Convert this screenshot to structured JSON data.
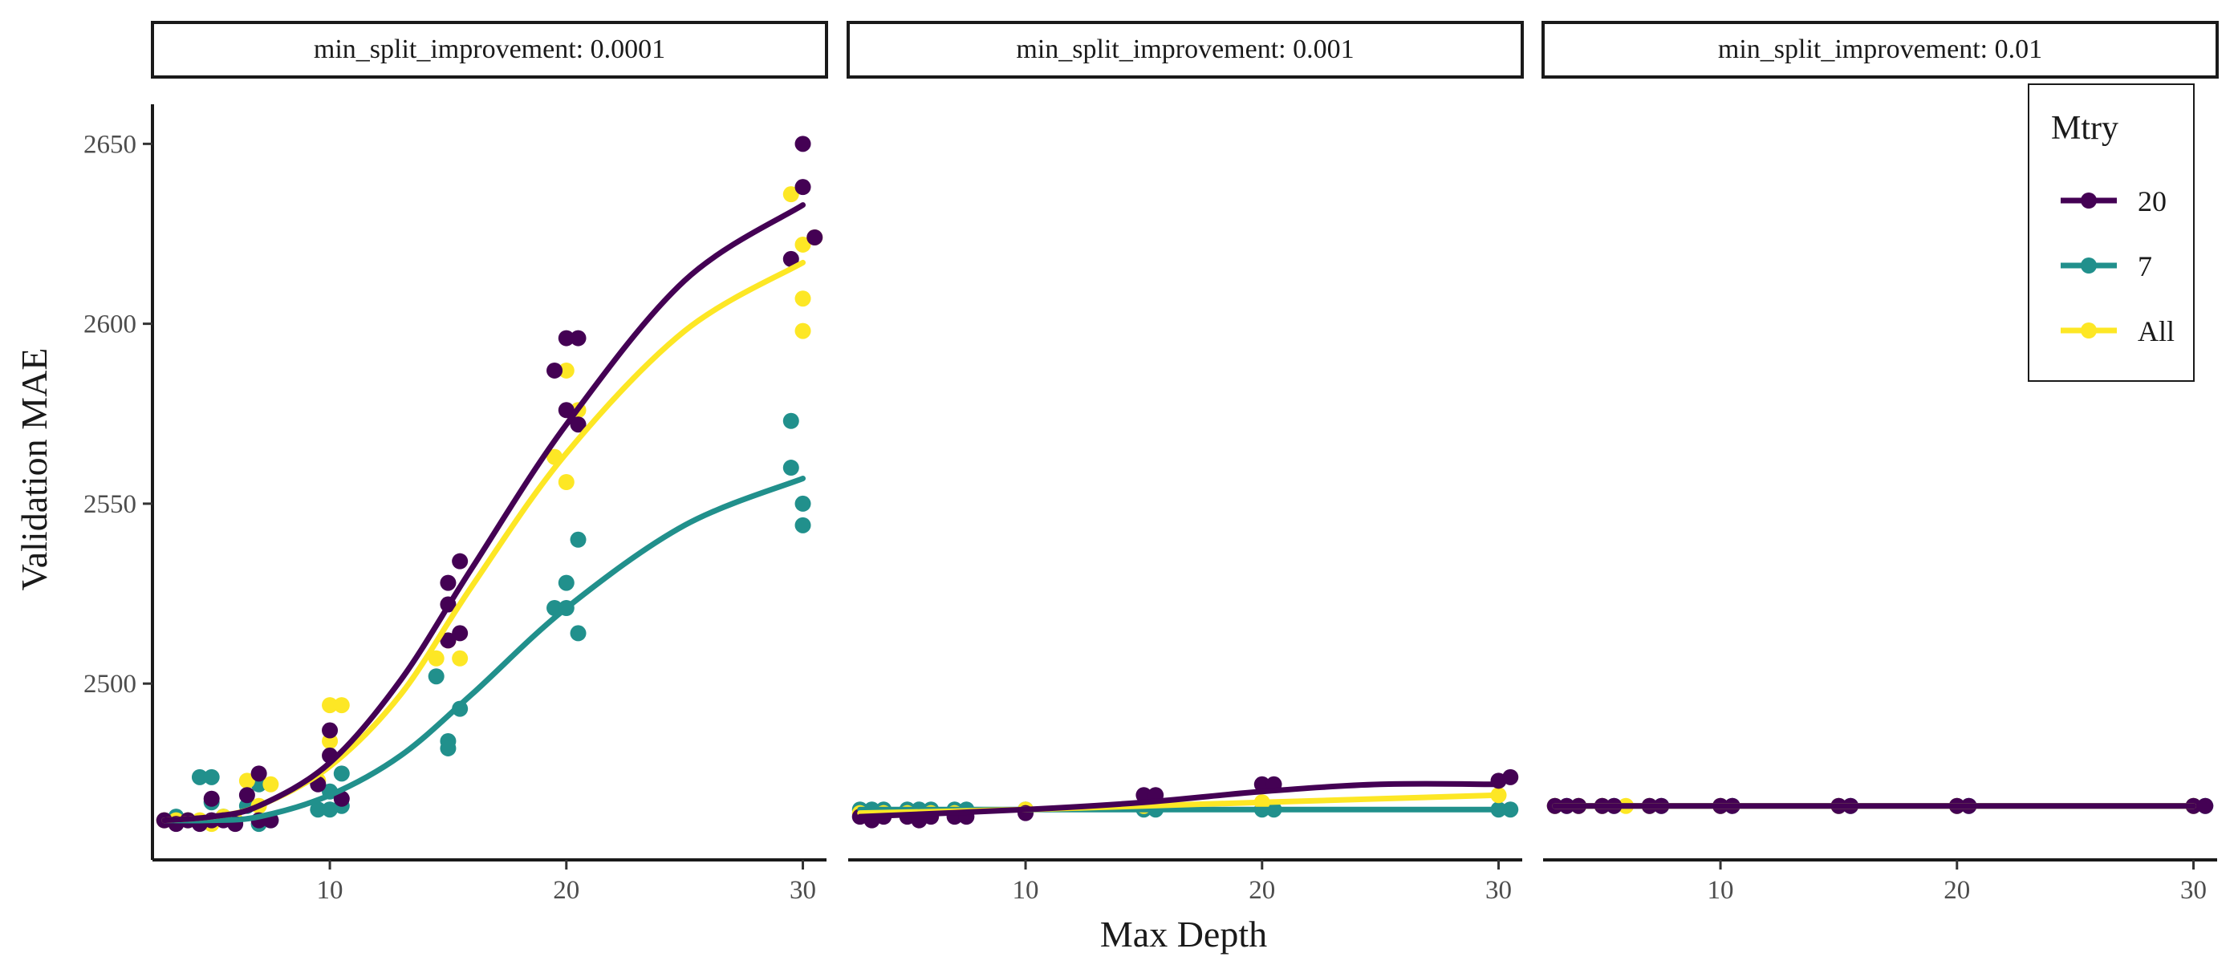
{
  "colors": {
    "20": "#440154",
    "7": "#21908C",
    "All": "#FDE725"
  },
  "chart_data": {
    "type": "scatter",
    "title": "",
    "xlabel": "Max Depth",
    "ylabel": "Validation MAE",
    "xlim": [
      2.5,
      31.0
    ],
    "ylim": [
      2451,
      2661
    ],
    "x_ticks": [
      10,
      20,
      30
    ],
    "x_tick_labels": [
      "10",
      "20",
      "30"
    ],
    "y_ticks": [
      2500,
      2550,
      2600,
      2650
    ],
    "y_tick_labels": [
      "2500",
      "2550",
      "2600",
      "2650"
    ],
    "legend": {
      "title": "Mtry",
      "entries": [
        "20",
        "7",
        "All"
      ],
      "position": "top-right"
    },
    "panels": [
      {
        "label": "min_split_improvement: 0.0001",
        "series": [
          {
            "name": "20",
            "points": [
              [
                3,
                2462
              ],
              [
                3.5,
                2461
              ],
              [
                4,
                2462
              ],
              [
                4.5,
                2461
              ],
              [
                5,
                2468
              ],
              [
                5,
                2462
              ],
              [
                5.5,
                2462
              ],
              [
                6,
                2461
              ],
              [
                6.5,
                2469
              ],
              [
                7,
                2462
              ],
              [
                7,
                2475
              ],
              [
                7.5,
                2462
              ],
              [
                9.5,
                2472
              ],
              [
                10,
                2480
              ],
              [
                10,
                2487
              ],
              [
                10.5,
                2468
              ],
              [
                15,
                2512
              ],
              [
                15,
                2522
              ],
              [
                15,
                2528
              ],
              [
                15.5,
                2534
              ],
              [
                15.5,
                2514
              ],
              [
                19.5,
                2587
              ],
              [
                20,
                2576
              ],
              [
                20,
                2596
              ],
              [
                20.5,
                2572
              ],
              [
                20.5,
                2596
              ],
              [
                29.5,
                2618
              ],
              [
                30,
                2638
              ],
              [
                30,
                2650
              ],
              [
                30.5,
                2624
              ]
            ],
            "curve": [
              [
                3,
                2462
              ],
              [
                5,
                2463
              ],
              [
                7,
                2466
              ],
              [
                10,
                2478
              ],
              [
                13,
                2501
              ],
              [
                16,
                2532
              ],
              [
                20,
                2572
              ],
              [
                25,
                2612
              ],
              [
                30,
                2633
              ]
            ]
          },
          {
            "name": "7",
            "points": [
              [
                3,
                2462
              ],
              [
                3.5,
                2463
              ],
              [
                4,
                2462
              ],
              [
                4.5,
                2474
              ],
              [
                5,
                2474
              ],
              [
                5,
                2467
              ],
              [
                5.5,
                2463
              ],
              [
                6,
                2462
              ],
              [
                6.5,
                2466
              ],
              [
                7,
                2472
              ],
              [
                7,
                2461
              ],
              [
                7.5,
                2462
              ],
              [
                9.5,
                2465
              ],
              [
                10,
                2465
              ],
              [
                10,
                2470
              ],
              [
                10.5,
                2466
              ],
              [
                10.5,
                2475
              ],
              [
                14.5,
                2502
              ],
              [
                15,
                2484
              ],
              [
                15,
                2482
              ],
              [
                15.5,
                2493
              ],
              [
                19.5,
                2521
              ],
              [
                20,
                2521
              ],
              [
                20,
                2528
              ],
              [
                20.5,
                2540
              ],
              [
                20.5,
                2514
              ],
              [
                29.5,
                2573
              ],
              [
                29.5,
                2560
              ],
              [
                30,
                2550
              ],
              [
                30,
                2544
              ]
            ],
            "curve": [
              [
                3,
                2462
              ],
              [
                5,
                2462
              ],
              [
                7,
                2463
              ],
              [
                10,
                2469
              ],
              [
                13,
                2480
              ],
              [
                16,
                2497
              ],
              [
                20,
                2521
              ],
              [
                25,
                2544
              ],
              [
                30,
                2557
              ]
            ]
          },
          {
            "name": "All",
            "points": [
              [
                3,
                2462
              ],
              [
                3.5,
                2462
              ],
              [
                4,
                2462
              ],
              [
                4.5,
                2462
              ],
              [
                5,
                2461
              ],
              [
                5.5,
                2463
              ],
              [
                6,
                2462
              ],
              [
                6.5,
                2473
              ],
              [
                7,
                2466
              ],
              [
                7.5,
                2472
              ],
              [
                9.5,
                2473
              ],
              [
                10,
                2494
              ],
              [
                10.5,
                2494
              ],
              [
                10,
                2484
              ],
              [
                14.5,
                2507
              ],
              [
                15,
                2512
              ],
              [
                15.5,
                2507
              ],
              [
                19.5,
                2563
              ],
              [
                20,
                2556
              ],
              [
                20,
                2587
              ],
              [
                20.5,
                2576
              ],
              [
                29.5,
                2636
              ],
              [
                30,
                2622
              ],
              [
                30,
                2607
              ],
              [
                30,
                2598
              ],
              [
                30.5,
                2624
              ]
            ],
            "curve": [
              [
                3,
                2462
              ],
              [
                5,
                2463
              ],
              [
                7,
                2466
              ],
              [
                10,
                2477
              ],
              [
                13,
                2497
              ],
              [
                16,
                2527
              ],
              [
                20,
                2564
              ],
              [
                25,
                2598
              ],
              [
                30,
                2617
              ]
            ]
          }
        ]
      },
      {
        "label": "min_split_improvement: 0.001",
        "series": [
          {
            "name": "20",
            "points": [
              [
                3,
                2463
              ],
              [
                3.5,
                2462
              ],
              [
                4,
                2463
              ],
              [
                5,
                2463
              ],
              [
                5.5,
                2462
              ],
              [
                6,
                2463
              ],
              [
                7,
                2463
              ],
              [
                7.5,
                2463
              ],
              [
                10,
                2464
              ],
              [
                15,
                2469
              ],
              [
                15.5,
                2469
              ],
              [
                20,
                2472
              ],
              [
                20.5,
                2472
              ],
              [
                30,
                2473
              ],
              [
                30.5,
                2474
              ]
            ],
            "curve": [
              [
                3,
                2463
              ],
              [
                10,
                2465
              ],
              [
                15,
                2467
              ],
              [
                20,
                2470
              ],
              [
                25,
                2472
              ],
              [
                30,
                2472
              ]
            ]
          },
          {
            "name": "7",
            "points": [
              [
                3,
                2465
              ],
              [
                3.5,
                2465
              ],
              [
                4,
                2465
              ],
              [
                5,
                2465
              ],
              [
                5.5,
                2465
              ],
              [
                6,
                2465
              ],
              [
                7,
                2465
              ],
              [
                7.5,
                2465
              ],
              [
                10,
                2465
              ],
              [
                15,
                2465
              ],
              [
                15.5,
                2465
              ],
              [
                20,
                2465
              ],
              [
                20.5,
                2465
              ],
              [
                30,
                2465
              ],
              [
                30.5,
                2465
              ]
            ],
            "curve": [
              [
                3,
                2465
              ],
              [
                10,
                2465
              ],
              [
                20,
                2465
              ],
              [
                30,
                2465
              ]
            ]
          },
          {
            "name": "All",
            "points": [
              [
                3,
                2464
              ],
              [
                4,
                2464
              ],
              [
                5,
                2464
              ],
              [
                6,
                2464
              ],
              [
                7,
                2464
              ],
              [
                10,
                2465
              ],
              [
                15,
                2466
              ],
              [
                20,
                2467
              ],
              [
                30,
                2469
              ]
            ],
            "curve": [
              [
                3,
                2464
              ],
              [
                10,
                2465
              ],
              [
                15,
                2466
              ],
              [
                20,
                2467
              ],
              [
                25,
                2468
              ],
              [
                30,
                2469
              ]
            ]
          }
        ]
      },
      {
        "label": "min_split_improvement: 0.01",
        "series": [
          {
            "name": "20",
            "points": [
              [
                3,
                2466
              ],
              [
                3.5,
                2466
              ],
              [
                4,
                2466
              ],
              [
                5,
                2466
              ],
              [
                5.5,
                2466
              ],
              [
                7,
                2466
              ],
              [
                7.5,
                2466
              ],
              [
                10,
                2466
              ],
              [
                10.5,
                2466
              ],
              [
                15,
                2466
              ],
              [
                15.5,
                2466
              ],
              [
                20,
                2466
              ],
              [
                20.5,
                2466
              ],
              [
                30,
                2466
              ],
              [
                30.5,
                2466
              ]
            ],
            "curve": [
              [
                3,
                2466
              ],
              [
                30,
                2466
              ]
            ]
          },
          {
            "name": "7",
            "points": [
              [
                3,
                2466
              ],
              [
                3.5,
                2466
              ],
              [
                4,
                2466
              ],
              [
                5,
                2466
              ],
              [
                5.5,
                2466
              ],
              [
                7,
                2466
              ],
              [
                7.5,
                2466
              ],
              [
                10,
                2466
              ],
              [
                10.5,
                2466
              ],
              [
                15,
                2466
              ],
              [
                15.5,
                2466
              ],
              [
                20,
                2466
              ],
              [
                20.5,
                2466
              ],
              [
                30,
                2466
              ],
              [
                30.5,
                2466
              ]
            ],
            "curve": [
              [
                3,
                2466
              ],
              [
                30,
                2466
              ]
            ]
          },
          {
            "name": "All",
            "points": [
              [
                3,
                2466
              ],
              [
                4,
                2466
              ],
              [
                5,
                2466
              ],
              [
                6,
                2466
              ],
              [
                7,
                2466
              ],
              [
                10,
                2466
              ],
              [
                15,
                2466
              ],
              [
                20,
                2466
              ],
              [
                30,
                2466
              ]
            ],
            "curve": [
              [
                3,
                2466
              ],
              [
                30,
                2466
              ]
            ]
          }
        ]
      }
    ]
  }
}
